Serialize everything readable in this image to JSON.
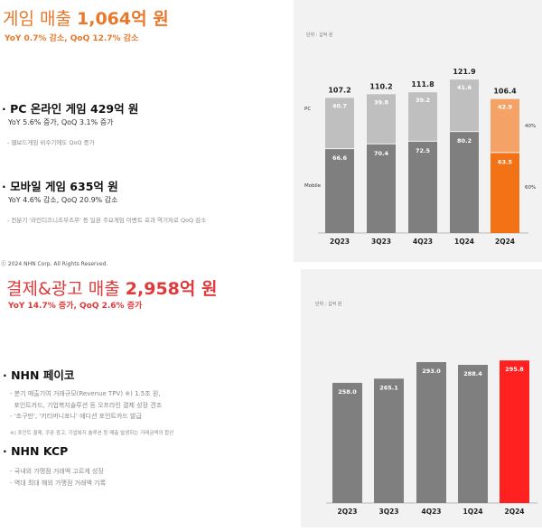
{
  "game": {
    "title_prefix": "게임 매출 ",
    "title_value": "1,064억 원",
    "subtitle": "YoY 0.7% 감소, QoQ 12.7% 감소",
    "pc": {
      "title": "· PC 온라인 게임 429억 원",
      "stat": "YoY 5.6% 증가, QoQ 3.1% 증가",
      "note": "- 웹보드게임 비수기에도 QoQ 증가"
    },
    "mobile": {
      "title": "· 모바일 게임 635억 원",
      "stat": "YoY 4.6% 감소, QoQ 20.9% 감소",
      "note": "- 전분기 '라인디즈니츠무츠무' 등 일본 주요게임 이벤트 효과 역기저로 QoQ 감소"
    },
    "copyright": "ⓒ 2024 NHN Corp. All Rights Reserved."
  },
  "payment": {
    "title_prefix": "결제&광고 매출 ",
    "title_value": "2,958억 원",
    "subtitle": "YoY 14.7% 증가, QoQ 2.6% 증가",
    "payco": {
      "title": "· NHN 페이코",
      "notes": [
        "- 분기 매출기여 거래규모(Revenue TPV) ※) 1.5조 원,",
        "  포인트카드, 기업복지솔루션 등 오프라인 결제 성장 견조",
        "- '조구만', '키티버니포니' 에디션 포인트카드 발급"
      ],
      "footnote": "※) 포인트 결제, 쿠폰 광고, 기업복지 솔루션 등 매출 발생하는 거래금액의 합산"
    },
    "kcp": {
      "title": "· NHN KCP",
      "notes": [
        "- 국내외 가맹점 거래액 고르게 성장",
        "- 역대 최대 해외 가맹점 거래액 기록"
      ]
    }
  },
  "colors": {
    "game_accent": "#e8782a",
    "payment_accent": "#e03a3a",
    "bar_gray": "#7f7f7f",
    "bar_light": "#bfbfbf",
    "highlight_dark": "#f47216",
    "highlight_light": "#f4a266",
    "payment_highlight": "#ff2020"
  },
  "chart_data": [
    {
      "type": "bar",
      "stacked": true,
      "unit": "단위 : 십억 원",
      "categories": [
        "2Q23",
        "3Q23",
        "4Q23",
        "1Q24",
        "2Q24"
      ],
      "series": [
        {
          "name": "Mobile",
          "values": [
            66.6,
            70.4,
            72.5,
            80.2,
            63.5
          ]
        },
        {
          "name": "PC",
          "values": [
            40.7,
            39.8,
            39.2,
            41.6,
            42.9
          ]
        }
      ],
      "totals": [
        107.2,
        110.2,
        111.8,
        121.9,
        106.4
      ],
      "share_labels": {
        "PC": "40%",
        "Mobile": "60%"
      },
      "highlight": "2Q24",
      "ylim": [
        0,
        125
      ]
    },
    {
      "type": "bar",
      "unit": "단위 : 십억 원",
      "categories": [
        "2Q23",
        "3Q23",
        "4Q23",
        "1Q24",
        "2Q24"
      ],
      "values": [
        258.0,
        265.1,
        293.0,
        288.4,
        295.8
      ],
      "highlight": "2Q24",
      "ylim": [
        55,
        300
      ]
    }
  ]
}
